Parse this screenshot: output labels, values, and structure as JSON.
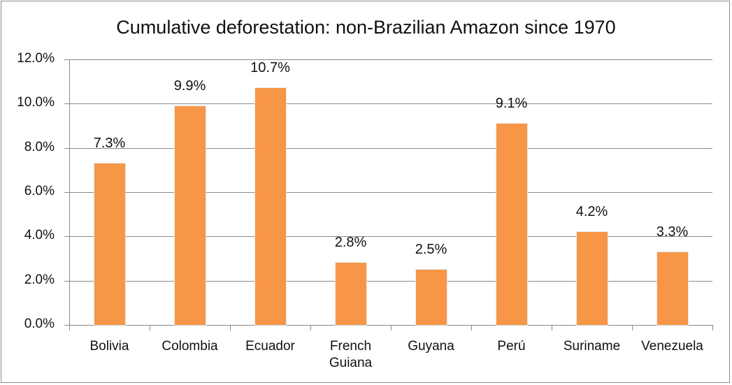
{
  "chart_data": {
    "type": "bar",
    "title": "Cumulative deforestation: non-Brazilian Amazon since 1970",
    "xlabel": "",
    "ylabel": "",
    "categories": [
      "Bolivia",
      "Colombia",
      "Ecuador",
      "French Guiana",
      "Guyana",
      "Perú",
      "Suriname",
      "Venezuela"
    ],
    "category_lines": [
      [
        "Bolivia"
      ],
      [
        "Colombia"
      ],
      [
        "Ecuador"
      ],
      [
        "French",
        "Guiana"
      ],
      [
        "Guyana"
      ],
      [
        "Perú"
      ],
      [
        "Suriname"
      ],
      [
        "Venezuela"
      ]
    ],
    "values": [
      7.3,
      9.9,
      10.7,
      2.8,
      2.5,
      9.1,
      4.2,
      3.3
    ],
    "value_labels": [
      "7.3%",
      "9.9%",
      "10.7%",
      "2.8%",
      "2.5%",
      "9.1%",
      "4.2%",
      "3.3%"
    ],
    "ylim": [
      0,
      12
    ],
    "yticks": [
      0,
      2,
      4,
      6,
      8,
      10,
      12
    ],
    "ytick_labels": [
      "0.0%",
      "2.0%",
      "4.0%",
      "6.0%",
      "8.0%",
      "10.0%",
      "12.0%"
    ],
    "grid": true,
    "legend": null,
    "bar_color": "#f79646"
  }
}
